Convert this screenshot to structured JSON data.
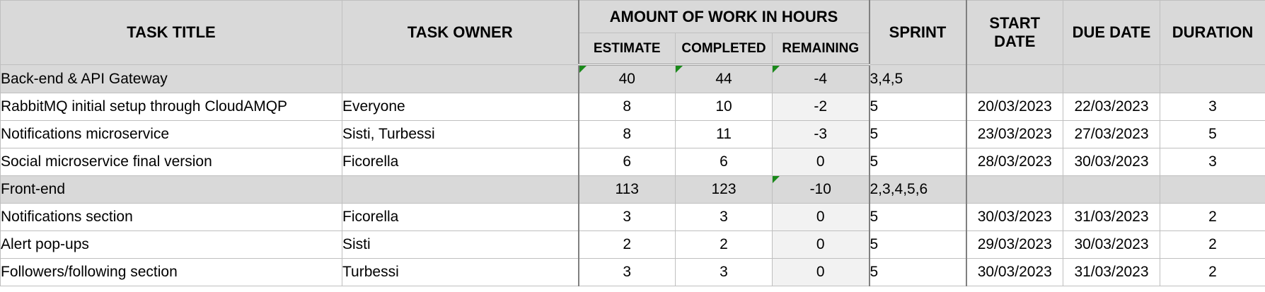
{
  "header": {
    "task_title": "TASK TITLE",
    "task_owner": "TASK OWNER",
    "work_group": "AMOUNT OF WORK IN HOURS",
    "estimate": "ESTIMATE",
    "completed": "COMPLETED",
    "remaining": "REMAINING",
    "sprint": "SPRINT",
    "start_date_line1": "START",
    "start_date_line2": "DATE",
    "due_date": "DUE DATE",
    "duration": "DURATION"
  },
  "rows": [
    {
      "title": "Back-end & API Gateway",
      "owner": "",
      "estimate": "40",
      "completed": "44",
      "remaining": "-4",
      "sprint": "3,4,5",
      "start": "",
      "due": "",
      "duration": "",
      "section": true
    },
    {
      "title": "RabbitMQ initial setup through CloudAMQP",
      "owner": "Everyone",
      "estimate": "8",
      "completed": "10",
      "remaining": "-2",
      "sprint": "5",
      "start": "20/03/2023",
      "due": "22/03/2023",
      "duration": "3",
      "section": false
    },
    {
      "title": "Notifications microservice",
      "owner": "Sisti, Turbessi",
      "estimate": "8",
      "completed": "11",
      "remaining": "-3",
      "sprint": "5",
      "start": "23/03/2023",
      "due": "27/03/2023",
      "duration": "5",
      "section": false
    },
    {
      "title": "Social microservice final version",
      "owner": "Ficorella",
      "estimate": "6",
      "completed": "6",
      "remaining": "0",
      "sprint": "5",
      "start": "28/03/2023",
      "due": "30/03/2023",
      "duration": "3",
      "section": false
    },
    {
      "title": "Front-end",
      "owner": "",
      "estimate": "113",
      "completed": "123",
      "remaining": "-10",
      "sprint": "2,3,4,5,6",
      "start": "",
      "due": "",
      "duration": "",
      "section": true
    },
    {
      "title": "Notifications section",
      "owner": "Ficorella",
      "estimate": "3",
      "completed": "3",
      "remaining": "0",
      "sprint": "5",
      "start": "30/03/2023",
      "due": "31/03/2023",
      "duration": "2",
      "section": false
    },
    {
      "title": "Alert pop-ups",
      "owner": "Sisti",
      "estimate": "2",
      "completed": "2",
      "remaining": "0",
      "sprint": "5",
      "start": "29/03/2023",
      "due": "30/03/2023",
      "duration": "2",
      "section": false
    },
    {
      "title": "Followers/following section",
      "owner": "Turbessi",
      "estimate": "3",
      "completed": "3",
      "remaining": "0",
      "sprint": "5",
      "start": "30/03/2023",
      "due": "31/03/2023",
      "duration": "2",
      "section": false
    }
  ],
  "colors": {
    "header_bg": "#d9d9d9",
    "section_bg": "#d9d9d9",
    "remaining_bg": "#f2f2f2",
    "comment_flag": "#1a8a1a"
  }
}
